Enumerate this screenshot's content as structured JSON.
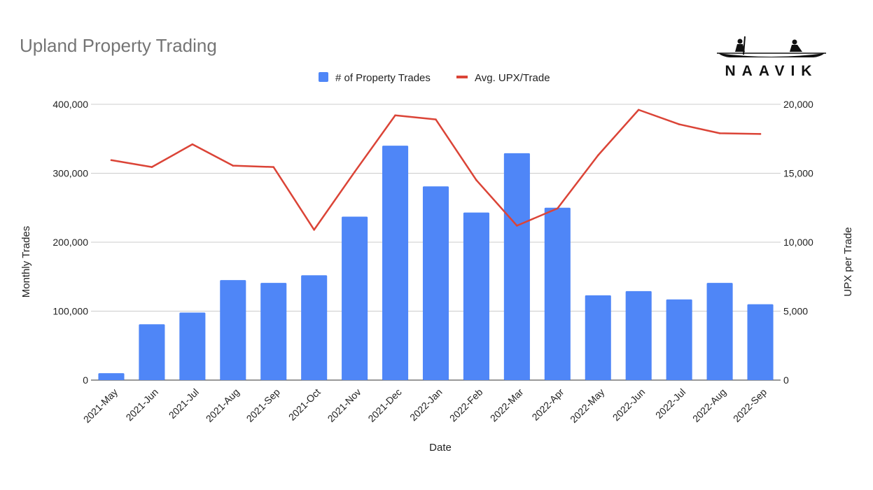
{
  "title": "Upland Property Trading",
  "logo": {
    "text": "NAAVIK"
  },
  "chart_data": {
    "type": "bar",
    "title": "Upland Property Trading",
    "xlabel": "Date",
    "ylabel": "Monthly Trades",
    "y2label": "UPX per Trade",
    "ylim": [
      0,
      400000
    ],
    "y2lim": [
      0,
      20000
    ],
    "yticks": [
      "0",
      "100,000",
      "200,000",
      "300,000",
      "400,000"
    ],
    "y2ticks": [
      "0",
      "5,000",
      "10,000",
      "15,000",
      "20,000"
    ],
    "grid": true,
    "legend": "top-center",
    "categories": [
      "2021-May",
      "2021-Jun",
      "2021-Jul",
      "2021-Aug",
      "2021-Sep",
      "2021-Oct",
      "2021-Nov",
      "2021-Dec",
      "2022-Jan",
      "2022-Feb",
      "2022-Mar",
      "2022-Apr",
      "2022-May",
      "2022-Jun",
      "2022-Jul",
      "2022-Aug",
      "2022-Sep"
    ],
    "series": [
      {
        "name": "# of Property Trades",
        "type": "bar",
        "axis": "left",
        "color": "#4f86f7",
        "values": [
          10000,
          81000,
          98000,
          145000,
          141000,
          152000,
          237000,
          340000,
          281000,
          243000,
          329000,
          250000,
          123000,
          129000,
          117000,
          141000,
          110000
        ]
      },
      {
        "name": "Avg. UPX/Trade",
        "type": "line",
        "axis": "right",
        "color": "#db4437",
        "values": [
          15950,
          15450,
          17100,
          15550,
          15450,
          10900,
          15100,
          19200,
          18900,
          14500,
          11200,
          12450,
          16300,
          19600,
          18550,
          17900,
          17850
        ]
      }
    ]
  }
}
